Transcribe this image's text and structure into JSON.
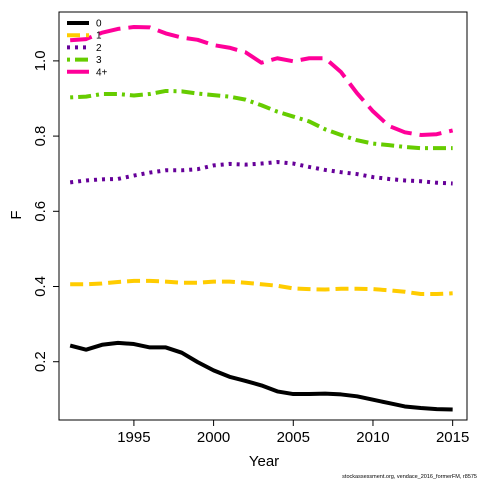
{
  "chart_data": {
    "type": "line",
    "title": "",
    "xlabel": "Year",
    "ylabel": "F",
    "xlim": [
      1990.3,
      2015.9
    ],
    "ylim": [
      0.045,
      1.13
    ],
    "x_ticks": [
      1995,
      2000,
      2005,
      2010,
      2015
    ],
    "y_ticks": [
      0.2,
      0.4,
      0.6,
      0.8,
      1.0
    ],
    "x_tick_labels": [
      "1995",
      "2000",
      "2005",
      "2010",
      "2015"
    ],
    "y_tick_labels": [
      "0.2",
      "0.4",
      "0.6",
      "0.8",
      "1.0"
    ],
    "grid": false,
    "legend_position": "top-left",
    "x": [
      1991,
      1992,
      1993,
      1994,
      1995,
      1996,
      1997,
      1998,
      1999,
      2000,
      2001,
      2002,
      2003,
      2004,
      2005,
      2006,
      2007,
      2008,
      2009,
      2010,
      2011,
      2012,
      2013,
      2014,
      2015
    ],
    "series": [
      {
        "name": "0",
        "color": "#000000",
        "dash": "solid",
        "values": [
          0.243,
          0.232,
          0.245,
          0.25,
          0.247,
          0.238,
          0.238,
          0.224,
          0.199,
          0.177,
          0.16,
          0.149,
          0.137,
          0.121,
          0.114,
          0.114,
          0.115,
          0.113,
          0.108,
          0.099,
          0.09,
          0.081,
          0.077,
          0.074,
          0.073
        ]
      },
      {
        "name": "1",
        "color": "#FFCC00",
        "dash": "dashed",
        "values": [
          0.406,
          0.406,
          0.408,
          0.412,
          0.415,
          0.415,
          0.413,
          0.41,
          0.41,
          0.413,
          0.413,
          0.41,
          0.406,
          0.402,
          0.395,
          0.393,
          0.392,
          0.394,
          0.394,
          0.393,
          0.39,
          0.386,
          0.38,
          0.38,
          0.382
        ]
      },
      {
        "name": "2",
        "color": "#660099",
        "dash": "dotted",
        "values": [
          0.677,
          0.682,
          0.685,
          0.686,
          0.695,
          0.703,
          0.709,
          0.709,
          0.712,
          0.722,
          0.726,
          0.724,
          0.727,
          0.731,
          0.727,
          0.718,
          0.71,
          0.704,
          0.699,
          0.691,
          0.686,
          0.682,
          0.68,
          0.676,
          0.674
        ]
      },
      {
        "name": "3",
        "color": "#66CC00",
        "dash": "dotdash",
        "values": [
          0.903,
          0.905,
          0.912,
          0.912,
          0.908,
          0.912,
          0.92,
          0.919,
          0.913,
          0.909,
          0.905,
          0.897,
          0.882,
          0.865,
          0.852,
          0.839,
          0.818,
          0.803,
          0.789,
          0.78,
          0.776,
          0.771,
          0.768,
          0.768,
          0.768
        ]
      },
      {
        "name": "4+",
        "color": "#FF0099",
        "dash": "longdash",
        "values": [
          1.055,
          1.058,
          1.075,
          1.085,
          1.09,
          1.089,
          1.073,
          1.062,
          1.056,
          1.042,
          1.035,
          1.023,
          0.995,
          1.007,
          0.999,
          1.007,
          1.007,
          0.97,
          0.914,
          0.866,
          0.827,
          0.81,
          0.803,
          0.805,
          0.815
        ]
      }
    ]
  },
  "footer": {
    "note": "stockassessment.org, vendace_2016_formerFM, r8575"
  }
}
